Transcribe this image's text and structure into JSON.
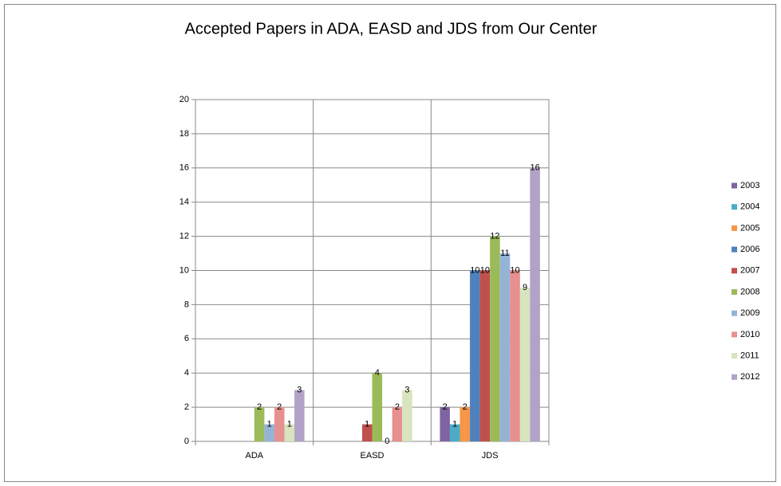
{
  "chart_data": {
    "type": "bar",
    "title": "Accepted Papers in ADA, EASD and JDS from Our Center",
    "categories": [
      "ADA",
      "EASD",
      "JDS"
    ],
    "series": [
      {
        "name": "2003",
        "color": "#8064a2",
        "values": [
          null,
          null,
          2
        ]
      },
      {
        "name": "2004",
        "color": "#4bacc6",
        "values": [
          null,
          null,
          1
        ]
      },
      {
        "name": "2005",
        "color": "#f79646",
        "values": [
          null,
          null,
          2
        ]
      },
      {
        "name": "2006",
        "color": "#4f81bd",
        "values": [
          null,
          null,
          10
        ]
      },
      {
        "name": "2007",
        "color": "#c0504d",
        "values": [
          null,
          1,
          10
        ]
      },
      {
        "name": "2008",
        "color": "#9bbb59",
        "values": [
          2,
          4,
          12
        ]
      },
      {
        "name": "2009",
        "color": "#95b3d7",
        "values": [
          1,
          0,
          11
        ]
      },
      {
        "name": "2010",
        "color": "#e6908f",
        "values": [
          2,
          2,
          10
        ]
      },
      {
        "name": "2011",
        "color": "#d7e4bd",
        "values": [
          1,
          3,
          9
        ]
      },
      {
        "name": "2012",
        "color": "#b3a2c7",
        "values": [
          3,
          null,
          16
        ]
      }
    ],
    "ylim": [
      0,
      20
    ],
    "yticks": [
      0,
      2,
      4,
      6,
      8,
      10,
      12,
      14,
      16,
      18,
      20
    ],
    "grid": true,
    "legend": "right"
  }
}
